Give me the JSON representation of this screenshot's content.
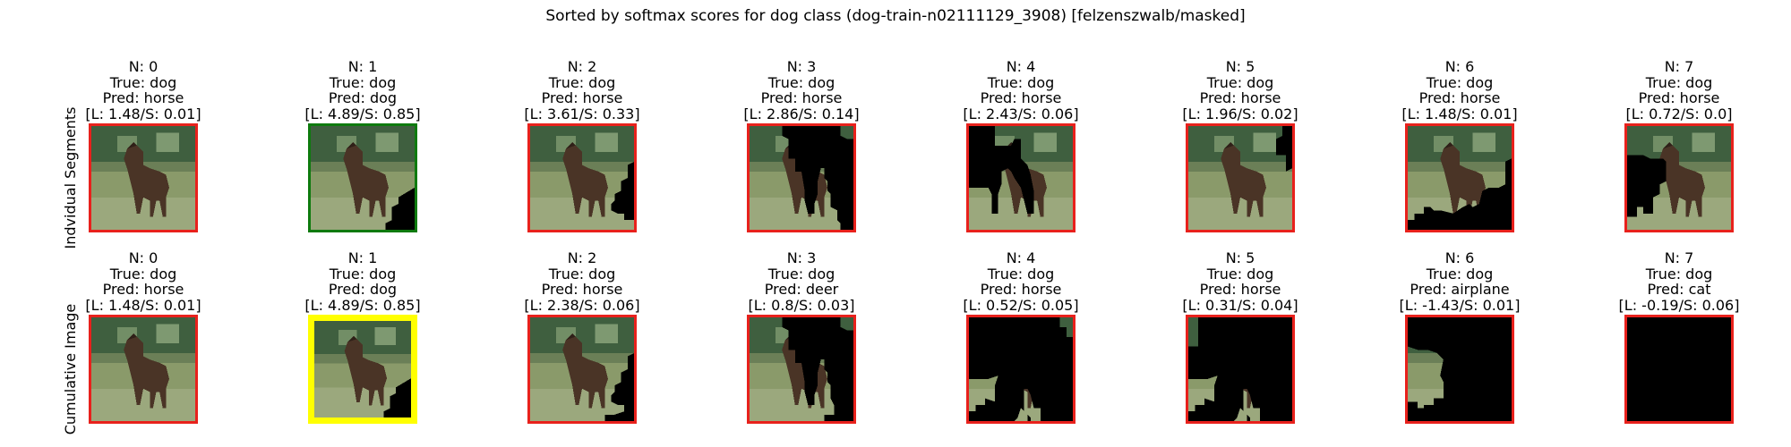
{
  "suptitle": "Sorted by softmax scores for dog class (dog-train-n02111129_3908) [felzenszwalb/masked]",
  "colors": {
    "border_wrong": "#e8211c",
    "border_correct": "#0e7a0e",
    "border_selected": "#ffff00",
    "mask": "#000000",
    "grass": "#8a9a6a",
    "foliage": "#3f5f3f",
    "dog": "#4a3426"
  },
  "rows": [
    {
      "label": "Indvidual Segments",
      "panels": [
        {
          "n": "N: 0",
          "true": "True: dog",
          "pred": "Pred: horse",
          "score": "[L: 1.48/S: 0.01]",
          "border": "border_wrong",
          "mask": "none"
        },
        {
          "n": "N: 1",
          "true": "True: dog",
          "pred": "Pred: dog",
          "score": "[L: 4.89/S: 0.85]",
          "border": "border_correct",
          "mask": "seg1"
        },
        {
          "n": "N: 2",
          "true": "True: dog",
          "pred": "Pred: horse",
          "score": "[L: 3.61/S: 0.33]",
          "border": "border_wrong",
          "mask": "seg2"
        },
        {
          "n": "N: 3",
          "true": "True: dog",
          "pred": "Pred: horse",
          "score": "[L: 2.86/S: 0.14]",
          "border": "border_wrong",
          "mask": "seg3"
        },
        {
          "n": "N: 4",
          "true": "True: dog",
          "pred": "Pred: horse",
          "score": "[L: 2.43/S: 0.06]",
          "border": "border_wrong",
          "mask": "seg4"
        },
        {
          "n": "N: 5",
          "true": "True: dog",
          "pred": "Pred: horse",
          "score": "[L: 1.96/S: 0.02]",
          "border": "border_wrong",
          "mask": "seg5"
        },
        {
          "n": "N: 6",
          "true": "True: dog",
          "pred": "Pred: horse",
          "score": "[L: 1.48/S: 0.01]",
          "border": "border_wrong",
          "mask": "seg6"
        },
        {
          "n": "N: 7",
          "true": "True: dog",
          "pred": "Pred: horse",
          "score": "[L: 0.72/S: 0.0]",
          "border": "border_wrong",
          "mask": "seg7"
        }
      ]
    },
    {
      "label": "Cumulative Image",
      "panels": [
        {
          "n": "N: 0",
          "true": "True: dog",
          "pred": "Pred: horse",
          "score": "[L: 1.48/S: 0.01]",
          "border": "border_wrong",
          "mask": "none"
        },
        {
          "n": "N: 1",
          "true": "True: dog",
          "pred": "Pred: dog",
          "score": "[L: 4.89/S: 0.85]",
          "border": "border_selected",
          "mask": "cum1"
        },
        {
          "n": "N: 2",
          "true": "True: dog",
          "pred": "Pred: horse",
          "score": "[L: 2.38/S: 0.06]",
          "border": "border_wrong",
          "mask": "cum2"
        },
        {
          "n": "N: 3",
          "true": "True: dog",
          "pred": "Pred: deer",
          "score": "[L: 0.8/S: 0.03]",
          "border": "border_wrong",
          "mask": "cum3"
        },
        {
          "n": "N: 4",
          "true": "True: dog",
          "pred": "Pred: horse",
          "score": "[L: 0.52/S: 0.05]",
          "border": "border_wrong",
          "mask": "cum4"
        },
        {
          "n": "N: 5",
          "true": "True: dog",
          "pred": "Pred: horse",
          "score": "[L: 0.31/S: 0.04]",
          "border": "border_wrong",
          "mask": "cum5"
        },
        {
          "n": "N: 6",
          "true": "True: dog",
          "pred": "Pred: airplane",
          "score": "[L: -1.43/S: 0.01]",
          "border": "border_wrong",
          "mask": "cum6"
        },
        {
          "n": "N: 7",
          "true": "True: dog",
          "pred": "Pred: cat",
          "score": "[L: -0.19/S: 0.06]",
          "border": "border_wrong",
          "mask": "full"
        }
      ]
    }
  ]
}
